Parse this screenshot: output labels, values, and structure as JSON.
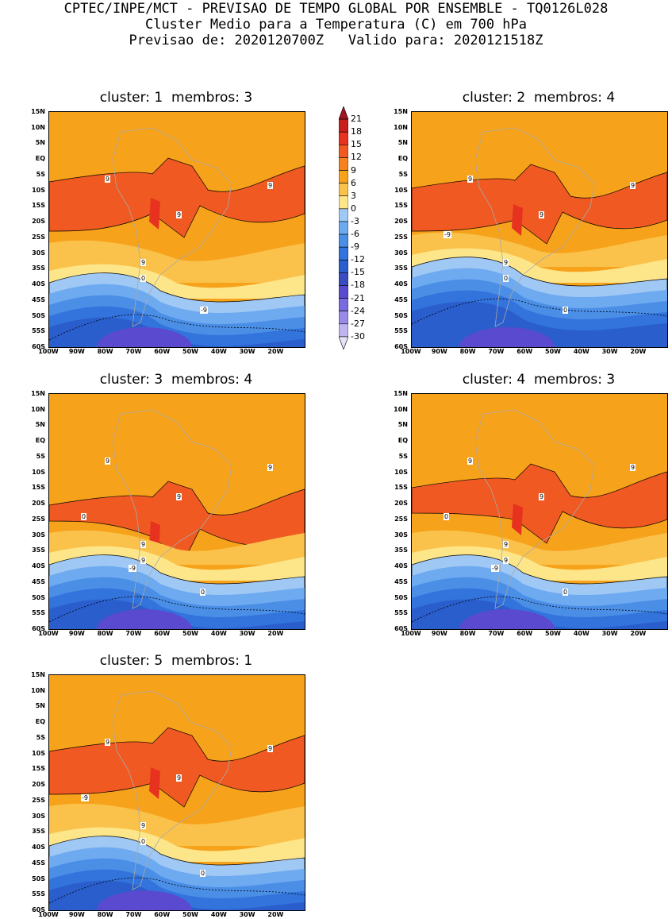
{
  "header": {
    "line1": "CPTEC/INPE/MCT - PREVISAO DE TEMPO GLOBAL POR ENSEMBLE - TQ0126L028",
    "line2": "Cluster Medio para a Temperatura (C) em 700 hPa",
    "line3": "Previsao de: 2020120700Z   Valido para: 2020121518Z"
  },
  "panels": [
    {
      "id": 1,
      "title": "cluster: 1  membros: 3"
    },
    {
      "id": 2,
      "title": "cluster: 2  membros: 4"
    },
    {
      "id": 3,
      "title": "cluster: 3  membros: 4"
    },
    {
      "id": 4,
      "title": "cluster: 4  membros: 3"
    },
    {
      "id": 5,
      "title": "cluster: 5  membros: 1"
    }
  ],
  "lat_labels": [
    "15N",
    "10N",
    "5N",
    "EQ",
    "5S",
    "10S",
    "15S",
    "20S",
    "25S",
    "30S",
    "35S",
    "40S",
    "45S",
    "50S",
    "55S",
    "60S"
  ],
  "lon_labels": [
    "100W",
    "90W",
    "80W",
    "70W",
    "60W",
    "50W",
    "40W",
    "30W",
    "20W"
  ],
  "colorbar": {
    "labels": [
      "21",
      "18",
      "15",
      "12",
      "9",
      "6",
      "3",
      "0",
      "-3",
      "-6",
      "-9",
      "-12",
      "-15",
      "-18",
      "-21",
      "-24",
      "-27",
      "-30"
    ],
    "colors": [
      "#a0141e",
      "#c81e1e",
      "#e6321e",
      "#f05a22",
      "#f5821e",
      "#f7a21b",
      "#fac24b",
      "#fde68a",
      "#a0c8f5",
      "#6eaaf0",
      "#4a8ee6",
      "#3273dc",
      "#2a5ecc",
      "#3a4cc0",
      "#5a4ad0",
      "#7a6ae0",
      "#9a8ae8",
      "#c0b4f0",
      "#e6e0f8"
    ]
  },
  "contour_labels": {
    "p1": [
      "9",
      "9",
      "9",
      "9",
      "0",
      "-9"
    ],
    "p2": [
      "9",
      "9",
      "9",
      "9",
      "0",
      "0",
      "-9"
    ],
    "p3": [
      "9",
      "9",
      "9",
      "9",
      "9",
      "0",
      "0",
      "-9"
    ],
    "p4": [
      "9",
      "9",
      "9",
      "9",
      "9",
      "0",
      "0",
      "-9"
    ],
    "p5": [
      "9",
      "9",
      "9",
      "9",
      "0",
      "0",
      "-9"
    ]
  }
}
